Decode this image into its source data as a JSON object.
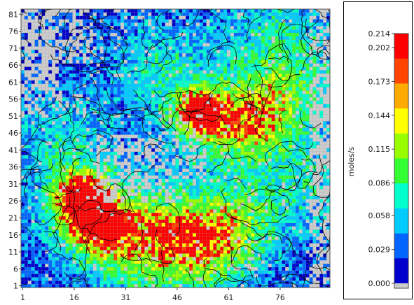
{
  "map": {
    "x_ticks": [
      "1",
      "16",
      "31",
      "46",
      "61",
      "76"
    ],
    "y_ticks": [
      "81",
      "76",
      "71",
      "66",
      "61",
      "56",
      "51",
      "46",
      "41",
      "36",
      "31",
      "26",
      "21",
      "16",
      "11",
      "6",
      "1"
    ],
    "grid_cols": 90,
    "grid_rows": 82,
    "nodata_color": "#cccccc"
  },
  "legend": {
    "unit": "moles/s",
    "labels": [
      "0.214",
      "0.202",
      "0.173",
      "0.144",
      "0.115",
      "0.086",
      "0.058",
      "0.029",
      "0.000"
    ],
    "min": 0.0,
    "max": 0.214,
    "colors": [
      "#0000cc",
      "#0066ff",
      "#00ccff",
      "#00ffcc",
      "#33ff33",
      "#99ff00",
      "#ffff00",
      "#ffaa00",
      "#ff4400",
      "#ff0000"
    ]
  }
}
